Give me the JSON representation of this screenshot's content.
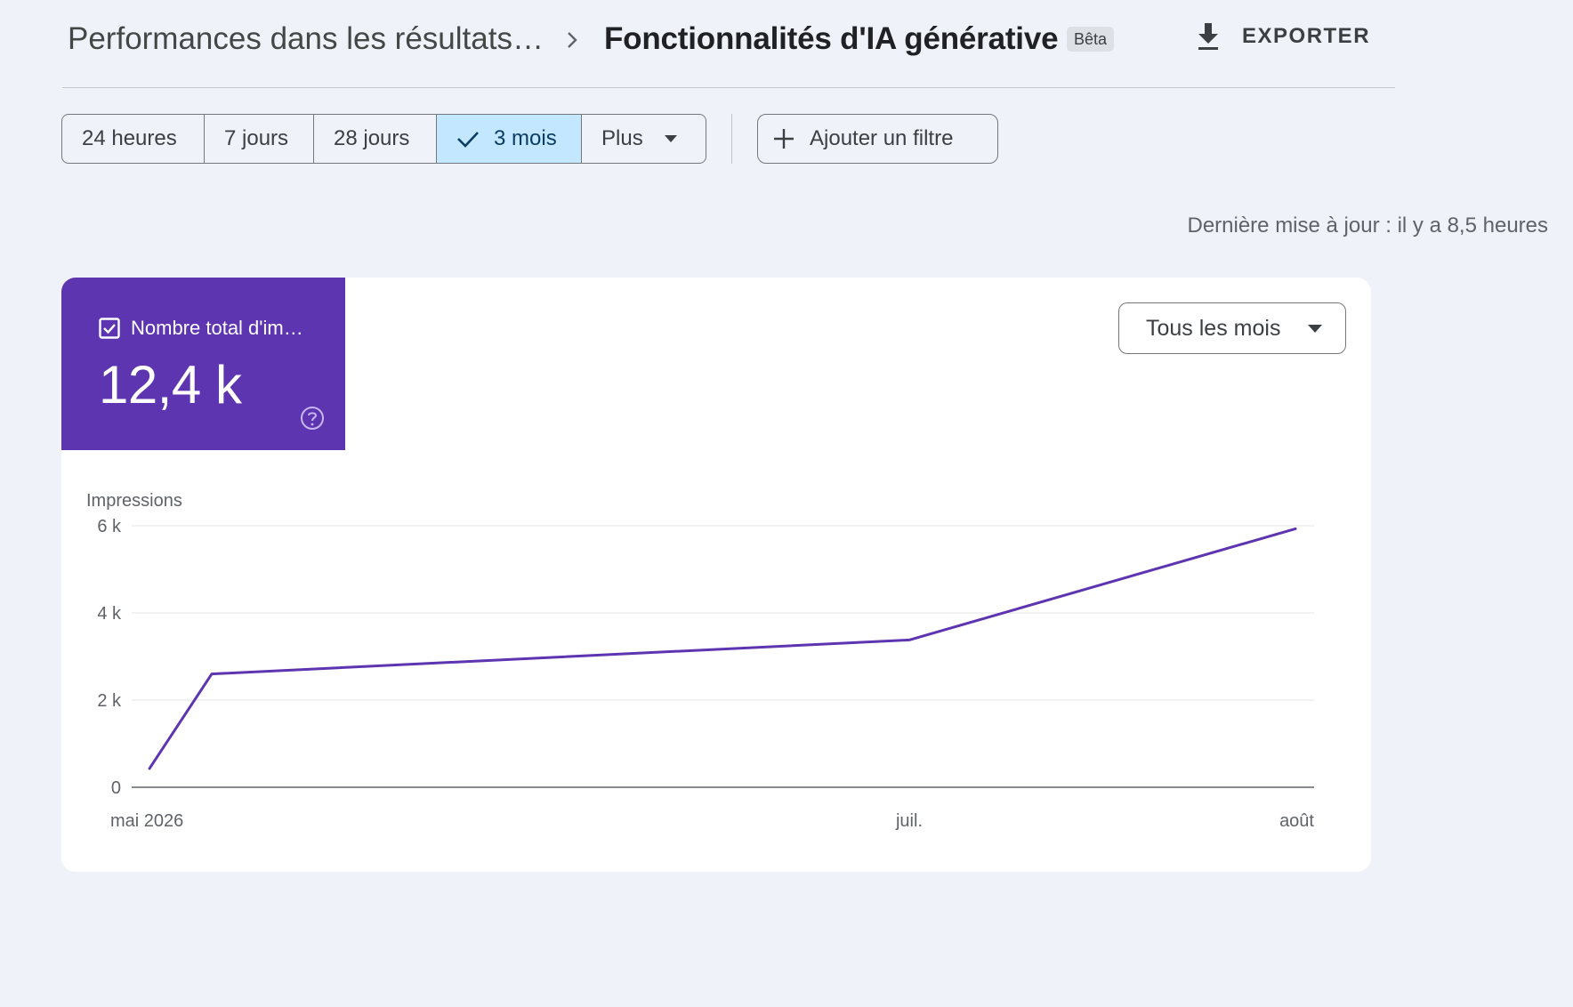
{
  "header": {
    "breadcrumb_parent": "Performances dans les résultats…",
    "title": "Fonctionnalités d'IA générative",
    "badge": "Bêta",
    "export_label": "EXPORTER"
  },
  "date_ranges": {
    "items": [
      "24 heures",
      "7 jours",
      "28 jours",
      "3 mois",
      "Plus"
    ],
    "selected": "3 mois"
  },
  "filter": {
    "add_label": "Ajouter un filtre"
  },
  "status": {
    "last_update": "Dernière mise à jour : il y a 8,5 heures"
  },
  "metric": {
    "label": "Nombre total d'im…",
    "value": "12,4 k",
    "checked": true,
    "color": "#5e35b1"
  },
  "granularity": {
    "selected": "Tous les mois"
  },
  "icons": {
    "breadcrumb_sep": "chevron-right-icon",
    "export": "download-icon",
    "selected": "check-icon",
    "dropdown": "arrow-drop-down-icon",
    "add": "plus-icon",
    "metric_check": "checkbox-checked-icon",
    "help": "help-circle-icon"
  },
  "chart_data": {
    "type": "line",
    "ylabel": "Impressions",
    "y_ticks": [
      0,
      2000,
      4000,
      6000
    ],
    "y_tick_labels": [
      "0",
      "2 k",
      "4 k",
      "6 k"
    ],
    "ylim": [
      0,
      6000
    ],
    "x_tick_labels": [
      "mai 2026",
      "juil.",
      "août"
    ],
    "x_tick_dates": [
      "2026-05-01",
      "2026-07-01",
      "2026-08-01"
    ],
    "grid": true,
    "series": [
      {
        "color": "#5e35b1",
        "points": [
          {
            "x": "2026-05-01",
            "y": 430
          },
          {
            "x": "2026-05-06",
            "y": 2600
          },
          {
            "x": "2026-07-01",
            "y": 3380
          },
          {
            "x": "2026-08-01",
            "y": 5930
          }
        ]
      }
    ]
  }
}
